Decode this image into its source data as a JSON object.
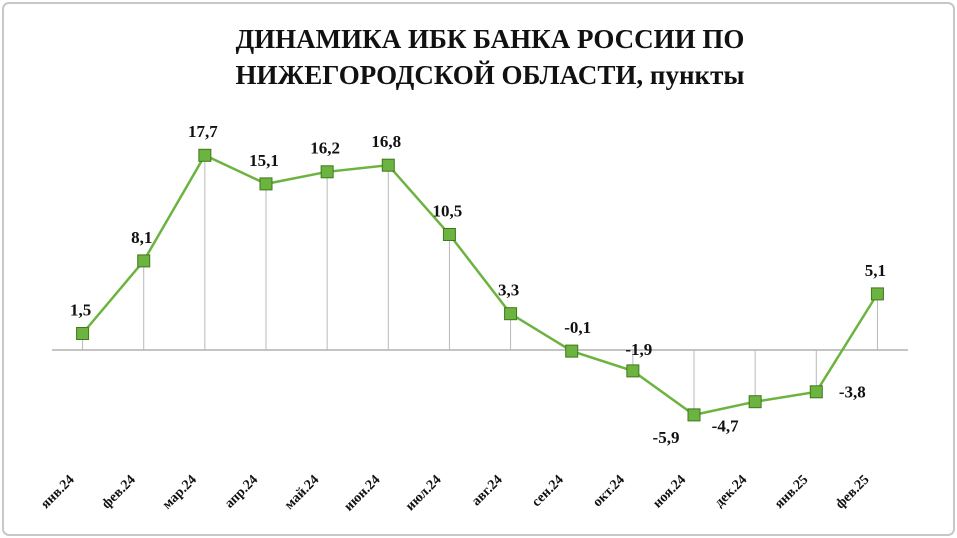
{
  "chart_data": {
    "type": "line",
    "title": [
      "ДИНАМИКА ИБК БАНКА РОССИИ ПО",
      "НИЖЕГОРОДСКОЙ ОБЛАСТИ, пункты"
    ],
    "categories": [
      "янв.24",
      "фев.24",
      "мар.24",
      "апр.24",
      "май.24",
      "июн.24",
      "июл.24",
      "авг.24",
      "сен.24",
      "окт.24",
      "ноя.24",
      "дек.24",
      "янв.25",
      "фев.25"
    ],
    "values": [
      1.5,
      8.1,
      17.7,
      15.1,
      16.2,
      16.8,
      10.5,
      3.3,
      -0.1,
      -1.9,
      -5.9,
      -4.7,
      -3.8,
      5.1
    ],
    "value_labels": [
      "1,5",
      "8,1",
      "17,7",
      "15,1",
      "16,2",
      "16,8",
      "10,5",
      "3,3",
      "-0,1",
      "-1,9",
      "-5,9",
      "-4,7",
      "-3,8",
      "5,1"
    ],
    "color": "#6cb33f",
    "ylim": [
      -8,
      20
    ]
  }
}
